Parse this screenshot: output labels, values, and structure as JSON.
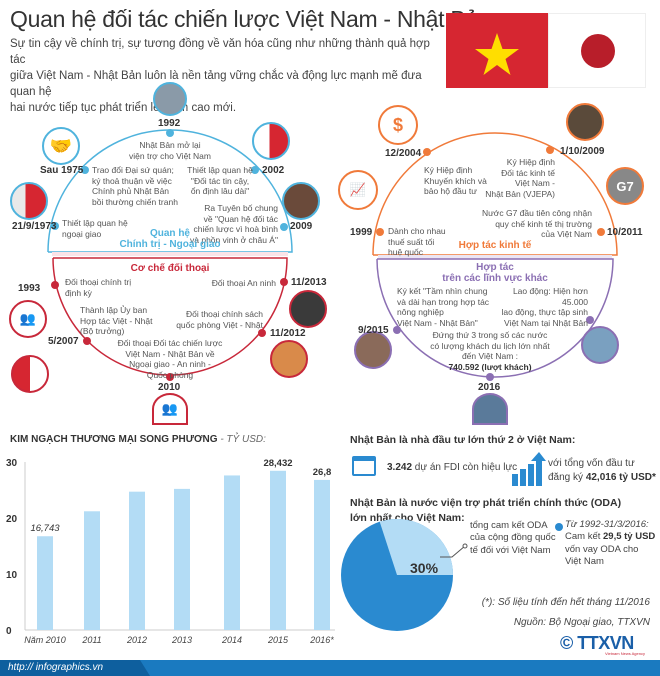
{
  "header": {
    "title": "Quan hệ đối tác chiến lược Việt Nam - Nhật Bản",
    "subtitle": "Sự tin cậy về chính trị, sự tương đồng về văn hóa  cũng như những thành quả hợp tác\ngiữa Việt Nam - Nhật Bản luôn là nền tảng vững chắc và động lực mạnh mẽ đưa quan hệ\nhai nước tiếp tục phát triển lên tầm cao mới."
  },
  "colors": {
    "politics": "#4fb3dd",
    "dialogue": "#c8283a",
    "economy": "#f07a3a",
    "other": "#8b6fb3",
    "bar": "#b3dcf5",
    "pie": "#2a8ad0",
    "pie_slice": "#b3dcf5",
    "footer": "#1a7ac0",
    "vn_flag": "#d62631",
    "vn_star": "#ffde00",
    "jp_disc": "#b81e2a"
  },
  "politics": {
    "label1": "Quan hệ",
    "label2": "Chính trị - Ngoại giao",
    "events": [
      {
        "date": "21/9/1973",
        "text": "Thiết lập quan hệ\nngoại giao",
        "icon": "handshake-flags-photo"
      },
      {
        "date": "Sau 1975",
        "text": "Trao đổi Đại sứ quán;\nký thoả thuận về việc\nChính phủ Nhật Bản\nbồi thường chiến tranh",
        "icon": "handshake-icon"
      },
      {
        "date": "1992",
        "text": "Nhật Bản mở lại\nviện trợ cho Việt Nam",
        "icon": "aid-photo"
      },
      {
        "date": "2002",
        "text": "Thiết lập quan hệ\n\"Đối tác tin cậy,\nổn định lâu dài\"",
        "icon": "flags-icon"
      },
      {
        "date": "2009",
        "text": "Ra Tuyên bố chung\nvề \"Quan hệ đối tác\nchiến lược vì hoà bình\nvà phồn vinh ở châu Á\"",
        "icon": "leaders-photo"
      }
    ]
  },
  "dialogue": {
    "label": "Cơ chế đối thoại",
    "events": [
      {
        "date": "1993",
        "text": "Đối thoại chính trị\nđịnh kỳ"
      },
      {
        "date": "5/2007",
        "text": "Thành lập Ủy ban\nHợp tác Việt - Nhật\n(Bộ trưởng)"
      },
      {
        "date": "2010",
        "text": "Đối thoại Đối tác chiến lược\nViệt Nam - Nhật Bản về\nNgoại giao - An ninh -\nQuốc phòng"
      },
      {
        "date": "11/2012",
        "text": "Đối thoại chính sách\nquốc phòng Việt - Nhật"
      },
      {
        "date": "11/2013",
        "text": "Đối thoại An ninh"
      }
    ]
  },
  "economy": {
    "label": "Hợp tác kinh tế",
    "events": [
      {
        "date": "1999",
        "text": "Dành cho nhau\nthuế suất tối\nhuệ quốc"
      },
      {
        "date": "12/2004",
        "text": "Ký Hiệp định\nKhuyến khích và\nbảo hộ đầu tư"
      },
      {
        "date": "1/10/2009",
        "text": "Ký Hiệp định\nĐối tác kinh tế\nViệt Nam -\nNhật Bản (VJEPA)"
      },
      {
        "date": "10/2011",
        "text": "Nước G7 đầu tiên công nhận\nquy chế kinh tế thị trường\ncủa Việt Nam"
      }
    ]
  },
  "other": {
    "label1": "Hợp tác",
    "label2": "trên các lĩnh vực khác",
    "events": [
      {
        "date": "9/2015",
        "text": "Ký kết \"Tầm nhìn chung\nvà dài hạn trong hợp tác\nnông nghiệp\nViệt Nam - Nhật Bản\""
      },
      {
        "date": "2016",
        "text": "Đứng thứ 3 trong số các nước\ncó lượng khách du lịch lớn nhất\nđến Việt Nam :",
        "bold": "740.592 (lượt khách)"
      },
      {
        "date": "",
        "text": "Lao động: Hiện hơn 45.000\nlao động, thực tập sinh\nViệt Nam tại Nhật Bản"
      }
    ]
  },
  "chart_data": {
    "type": "bar",
    "title": "KIM NGẠCH THƯƠNG MẠI SONG PHƯƠNG",
    "unit": "- TỶ USD:",
    "categories": [
      "Năm 2010",
      "2011",
      "2012",
      "2013",
      "2014",
      "2015",
      "2016*"
    ],
    "values": [
      16.743,
      21.2,
      24.7,
      25.2,
      27.6,
      28.432,
      26.8
    ],
    "data_labels": [
      "16,743",
      "",
      "",
      "",
      "",
      "28,432",
      "26,8"
    ],
    "yticks": [
      "0",
      "10",
      "20",
      "30"
    ],
    "ylim": [
      0,
      30
    ],
    "grid": false
  },
  "fdi": {
    "heading": "Nhật Bản là nhà đầu tư lớn thứ 2 ở Việt Nam:",
    "projects_bold": "3.242",
    "projects_text": " dự án FDI còn hiệu lực",
    "capital_text1": "với tổng vốn đầu tư",
    "capital_text2": "đăng ký ",
    "capital_bold": "42,016 tỷ USD*"
  },
  "oda": {
    "heading": "Nhật Bản là nước viện trợ phát triển chính thức (ODA)\nlớn nhất cho Việt Nam:",
    "percent": 30,
    "percent_label": "30%",
    "pie_caption": "tổng cam kết ODA\ncủa cộng đồng quốc\ntế đối với Việt Nam",
    "legend_period": "Từ 1992-31/3/2016:",
    "legend_text1": "Cam kết ",
    "legend_bold": "29,5 tỷ USD",
    "legend_text2": "vốn vay ODA cho\nViệt Nam"
  },
  "footnote": "(*): Số liệu tính đến hết tháng 11/2016",
  "source": "Nguồn: Bộ Ngoại giao, TTXVN",
  "logo": {
    "text": "TTXVN",
    "sub": "Vietnam News Agency",
    "copyright": "©"
  },
  "footer": {
    "url": "http:// infographics.vn"
  }
}
